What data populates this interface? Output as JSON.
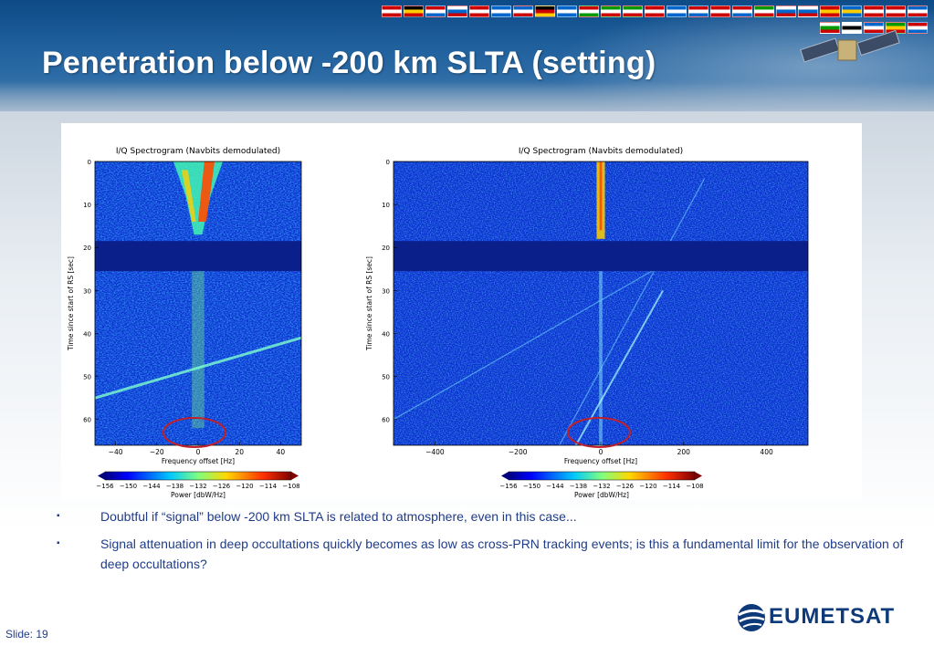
{
  "slide": {
    "title": "Penetration below -200 km SLTA (setting)",
    "slide_label": "Slide: 19",
    "logo_text": "EUMETSAT",
    "bullets": [
      "Doubtful if “signal” below -200 km SLTA is related to atmosphere, even in this case...",
      "Signal attenuation in deep occultations quickly becomes as low as cross-PRN tracking events; is this a fundamental limit for the observation of deep occultations?"
    ],
    "bullet_marker": "▪"
  },
  "chart_data": [
    {
      "type": "heatmap",
      "title": "I/Q Spectrogram (Navbits demodulated)",
      "xlabel": "Frequency offset [Hz]",
      "ylabel": "Time since start of RS [sec]",
      "xlim": [
        -50,
        50
      ],
      "ylim": [
        66,
        0
      ],
      "xticks": [
        "−40",
        "−20",
        "0",
        "20",
        "40"
      ],
      "yticks": [
        "0",
        "10",
        "20",
        "30",
        "40",
        "50",
        "60"
      ],
      "colorbar": {
        "label": "Power [dbW/Hz]",
        "ticks": [
          "−156",
          "−150",
          "−144",
          "−138",
          "−132",
          "−126",
          "−120",
          "−114",
          "−108"
        ],
        "range": [
          -156,
          -108
        ]
      },
      "annotation": "red ellipse around signal near 0 Hz at end of record"
    },
    {
      "type": "heatmap",
      "title": "I/Q Spectrogram (Navbits demodulated)",
      "xlabel": "Frequency offset [Hz]",
      "ylabel": "Time since start of RS [sec]",
      "xlim": [
        -500,
        500
      ],
      "ylim": [
        66,
        0
      ],
      "xticks": [
        "−400",
        "−200",
        "0",
        "200",
        "400"
      ],
      "yticks": [
        "0",
        "10",
        "20",
        "30",
        "40",
        "50",
        "60"
      ],
      "colorbar": {
        "label": "Power [dbW/Hz]",
        "ticks": [
          "−156",
          "−150",
          "−144",
          "−138",
          "−132",
          "−126",
          "−120",
          "−114",
          "−108"
        ],
        "range": [
          -156,
          -108
        ]
      },
      "annotation": "red ellipse around signal near 0 Hz at end of record"
    }
  ],
  "colors": {
    "title_text": "#ffffff",
    "bullet_text": "#1f3c8a",
    "header_blue": "#1f5f9c",
    "ellipse": "#c0202a"
  }
}
